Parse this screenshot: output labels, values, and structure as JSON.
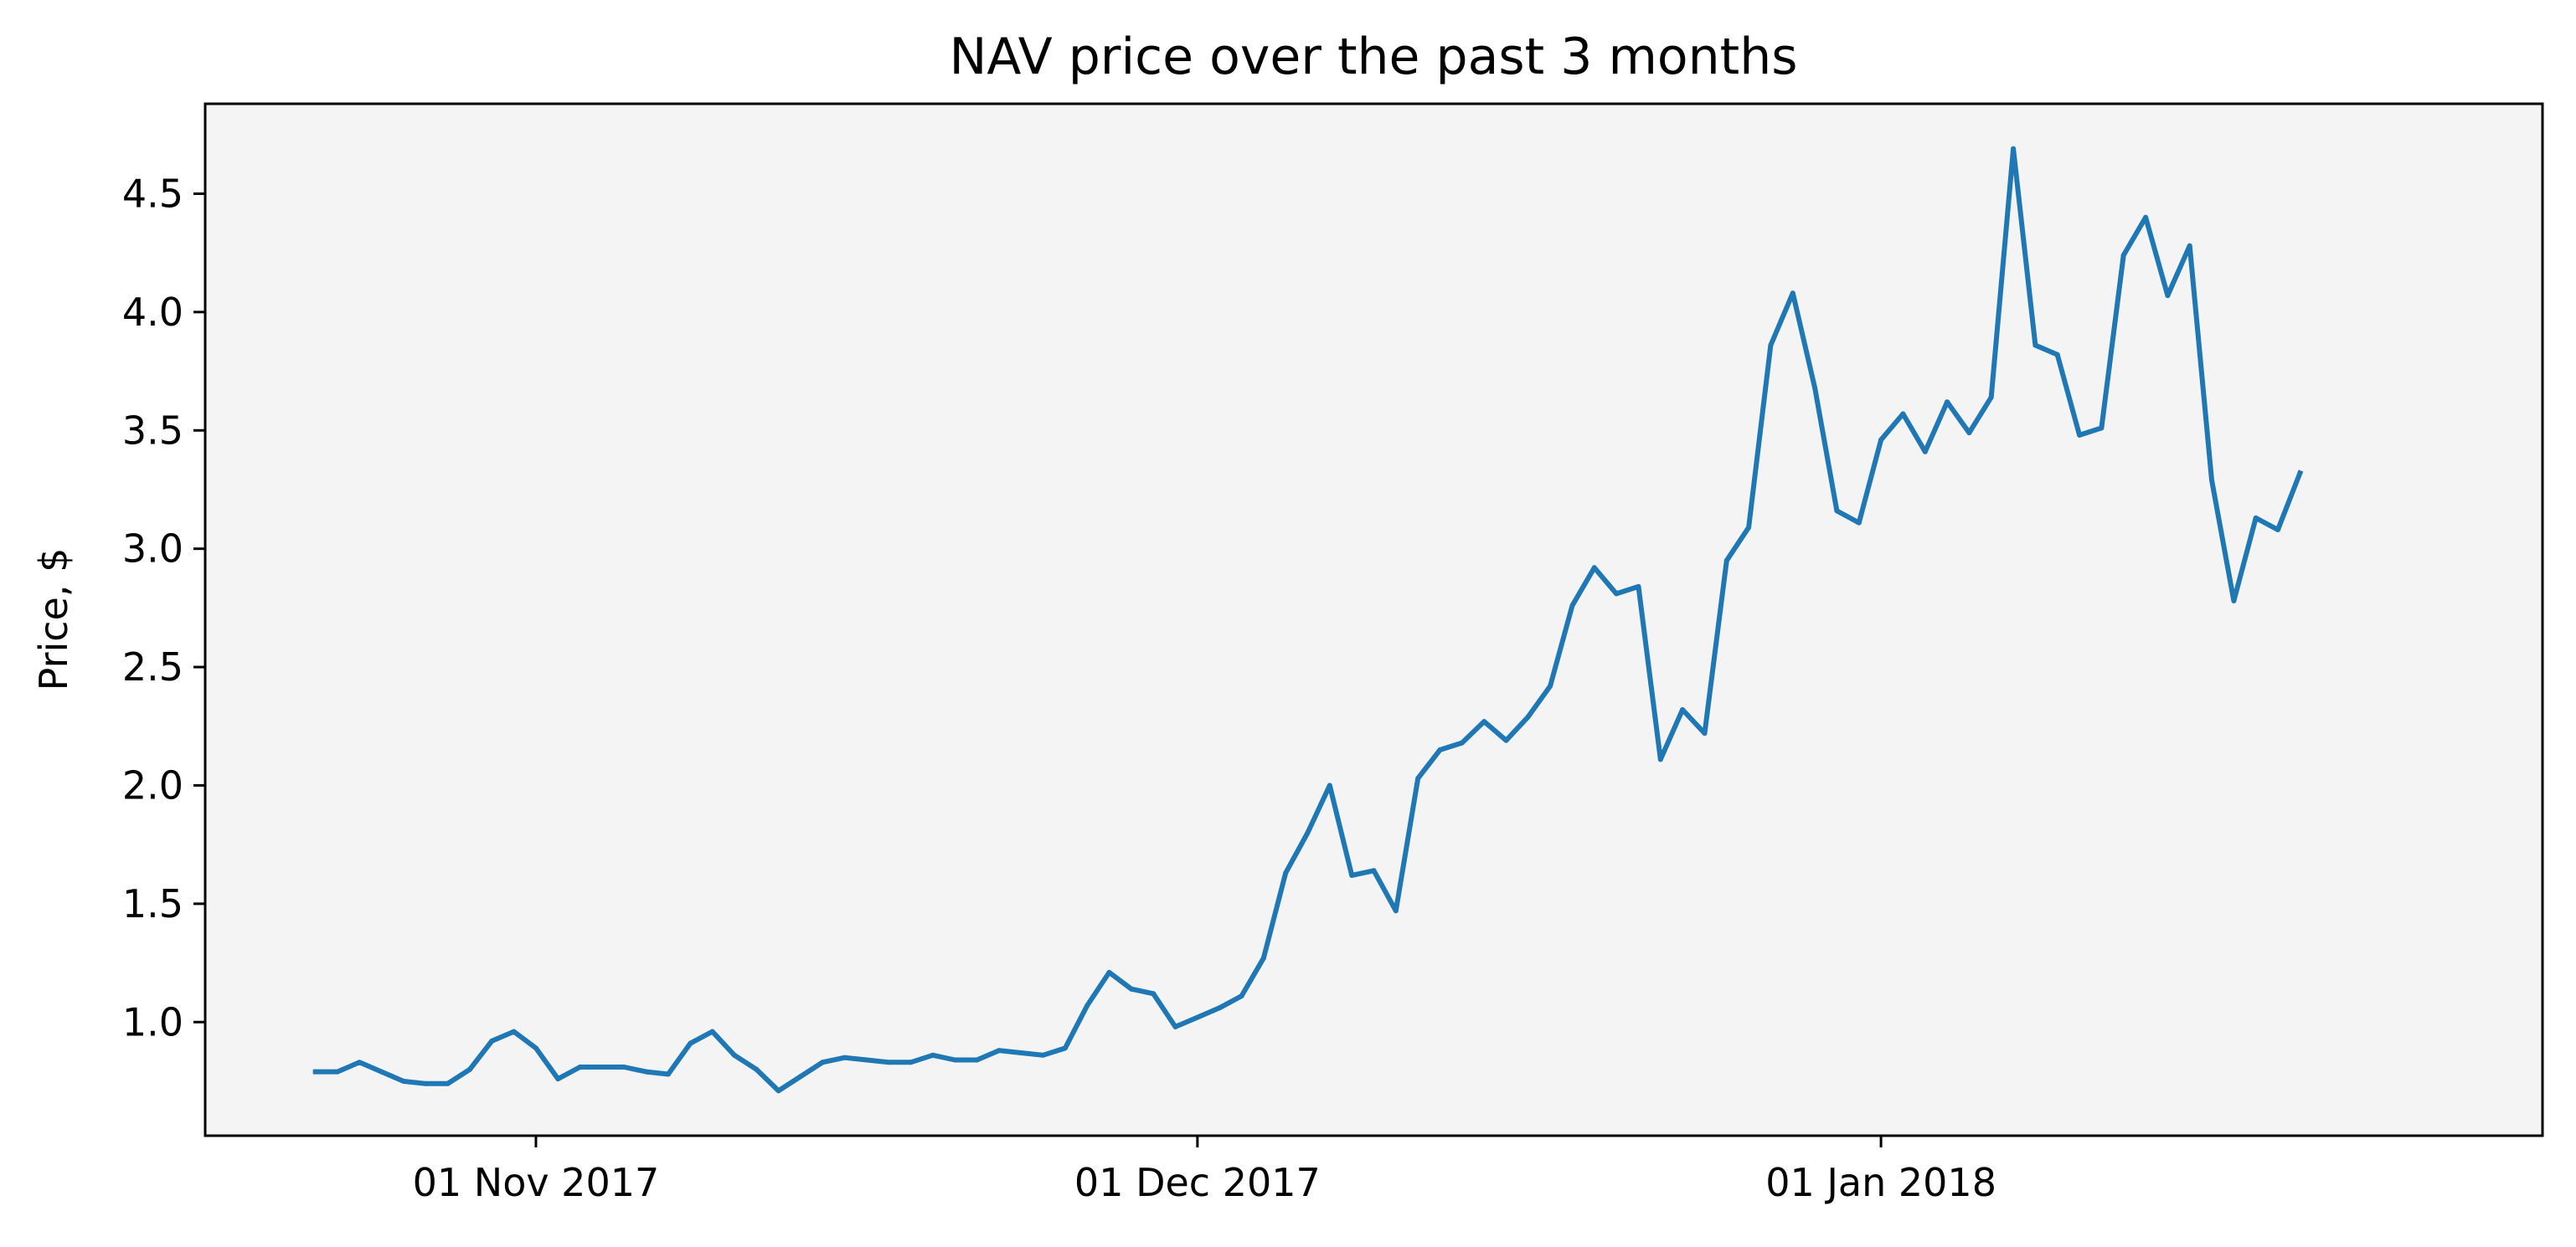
{
  "chart_data": {
    "type": "line",
    "title": "NAV price over the past 3 months",
    "xlabel": "",
    "ylabel": "Price, $",
    "x_axis": {
      "kind": "date",
      "range": [
        "2017-10-17",
        "2018-01-31"
      ],
      "ticks": [
        {
          "date": "2017-11-01",
          "label": "01 Nov 2017"
        },
        {
          "date": "2017-12-01",
          "label": "01 Dec 2017"
        },
        {
          "date": "2018-01-01",
          "label": "01 Jan 2018"
        }
      ]
    },
    "y_axis": {
      "range": [
        0.52,
        4.88
      ],
      "ticks": [
        1.0,
        1.5,
        2.0,
        2.5,
        3.0,
        3.5,
        4.0,
        4.5
      ],
      "tick_labels": [
        "1.0",
        "1.5",
        "2.0",
        "2.5",
        "3.0",
        "3.5",
        "4.0",
        "4.5"
      ]
    },
    "grid": false,
    "series": [
      {
        "color": "#1f77b4",
        "points": [
          {
            "x": "2017-10-22",
            "y": 0.79
          },
          {
            "x": "2017-10-23",
            "y": 0.79
          },
          {
            "x": "2017-10-24",
            "y": 0.83
          },
          {
            "x": "2017-10-25",
            "y": 0.79
          },
          {
            "x": "2017-10-26",
            "y": 0.75
          },
          {
            "x": "2017-10-27",
            "y": 0.74
          },
          {
            "x": "2017-10-28",
            "y": 0.74
          },
          {
            "x": "2017-10-29",
            "y": 0.8
          },
          {
            "x": "2017-10-30",
            "y": 0.92
          },
          {
            "x": "2017-10-31",
            "y": 0.96
          },
          {
            "x": "2017-11-01",
            "y": 0.89
          },
          {
            "x": "2017-11-02",
            "y": 0.76
          },
          {
            "x": "2017-11-03",
            "y": 0.81
          },
          {
            "x": "2017-11-04",
            "y": 0.81
          },
          {
            "x": "2017-11-05",
            "y": 0.81
          },
          {
            "x": "2017-11-06",
            "y": 0.79
          },
          {
            "x": "2017-11-07",
            "y": 0.78
          },
          {
            "x": "2017-11-08",
            "y": 0.91
          },
          {
            "x": "2017-11-09",
            "y": 0.96
          },
          {
            "x": "2017-11-10",
            "y": 0.86
          },
          {
            "x": "2017-11-11",
            "y": 0.8
          },
          {
            "x": "2017-11-12",
            "y": 0.71
          },
          {
            "x": "2017-11-13",
            "y": 0.77
          },
          {
            "x": "2017-11-14",
            "y": 0.83
          },
          {
            "x": "2017-11-15",
            "y": 0.85
          },
          {
            "x": "2017-11-16",
            "y": 0.84
          },
          {
            "x": "2017-11-17",
            "y": 0.83
          },
          {
            "x": "2017-11-18",
            "y": 0.83
          },
          {
            "x": "2017-11-19",
            "y": 0.86
          },
          {
            "x": "2017-11-20",
            "y": 0.84
          },
          {
            "x": "2017-11-21",
            "y": 0.84
          },
          {
            "x": "2017-11-22",
            "y": 0.88
          },
          {
            "x": "2017-11-23",
            "y": 0.87
          },
          {
            "x": "2017-11-24",
            "y": 0.86
          },
          {
            "x": "2017-11-25",
            "y": 0.89
          },
          {
            "x": "2017-11-26",
            "y": 1.07
          },
          {
            "x": "2017-11-27",
            "y": 1.21
          },
          {
            "x": "2017-11-28",
            "y": 1.14
          },
          {
            "x": "2017-11-29",
            "y": 1.12
          },
          {
            "x": "2017-11-30",
            "y": 0.98
          },
          {
            "x": "2017-12-01",
            "y": 1.02
          },
          {
            "x": "2017-12-02",
            "y": 1.06
          },
          {
            "x": "2017-12-03",
            "y": 1.11
          },
          {
            "x": "2017-12-04",
            "y": 1.27
          },
          {
            "x": "2017-12-05",
            "y": 1.63
          },
          {
            "x": "2017-12-06",
            "y": 1.8
          },
          {
            "x": "2017-12-07",
            "y": 2.0
          },
          {
            "x": "2017-12-08",
            "y": 1.62
          },
          {
            "x": "2017-12-09",
            "y": 1.64
          },
          {
            "x": "2017-12-10",
            "y": 1.47
          },
          {
            "x": "2017-12-11",
            "y": 2.03
          },
          {
            "x": "2017-12-12",
            "y": 2.15
          },
          {
            "x": "2017-12-13",
            "y": 2.18
          },
          {
            "x": "2017-12-14",
            "y": 2.27
          },
          {
            "x": "2017-12-15",
            "y": 2.19
          },
          {
            "x": "2017-12-16",
            "y": 2.29
          },
          {
            "x": "2017-12-17",
            "y": 2.42
          },
          {
            "x": "2017-12-18",
            "y": 2.76
          },
          {
            "x": "2017-12-19",
            "y": 2.92
          },
          {
            "x": "2017-12-20",
            "y": 2.81
          },
          {
            "x": "2017-12-21",
            "y": 2.84
          },
          {
            "x": "2017-12-22",
            "y": 2.11
          },
          {
            "x": "2017-12-23",
            "y": 2.32
          },
          {
            "x": "2017-12-24",
            "y": 2.22
          },
          {
            "x": "2017-12-25",
            "y": 2.95
          },
          {
            "x": "2017-12-26",
            "y": 3.09
          },
          {
            "x": "2017-12-27",
            "y": 3.86
          },
          {
            "x": "2017-12-28",
            "y": 4.08
          },
          {
            "x": "2017-12-29",
            "y": 3.68
          },
          {
            "x": "2017-12-30",
            "y": 3.16
          },
          {
            "x": "2017-12-31",
            "y": 3.11
          },
          {
            "x": "2018-01-01",
            "y": 3.46
          },
          {
            "x": "2018-01-02",
            "y": 3.57
          },
          {
            "x": "2018-01-03",
            "y": 3.41
          },
          {
            "x": "2018-01-04",
            "y": 3.62
          },
          {
            "x": "2018-01-05",
            "y": 3.49
          },
          {
            "x": "2018-01-06",
            "y": 3.64
          },
          {
            "x": "2018-01-07",
            "y": 4.69
          },
          {
            "x": "2018-01-08",
            "y": 3.86
          },
          {
            "x": "2018-01-09",
            "y": 3.82
          },
          {
            "x": "2018-01-10",
            "y": 3.48
          },
          {
            "x": "2018-01-11",
            "y": 3.51
          },
          {
            "x": "2018-01-12",
            "y": 4.24
          },
          {
            "x": "2018-01-13",
            "y": 4.4
          },
          {
            "x": "2018-01-14",
            "y": 4.07
          },
          {
            "x": "2018-01-15",
            "y": 4.28
          },
          {
            "x": "2018-01-16",
            "y": 3.29
          },
          {
            "x": "2018-01-17",
            "y": 2.78
          },
          {
            "x": "2018-01-18",
            "y": 3.13
          },
          {
            "x": "2018-01-19",
            "y": 3.08
          },
          {
            "x": "2018-01-20",
            "y": 3.32
          }
        ]
      }
    ],
    "colors": {
      "plot_background": "#f4f4f4",
      "line": "#1f77b4"
    }
  }
}
